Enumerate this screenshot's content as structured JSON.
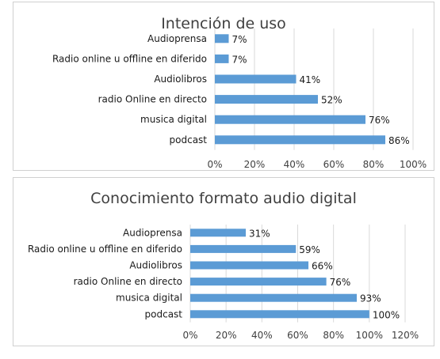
{
  "chart_data": [
    {
      "type": "bar",
      "orientation": "horizontal",
      "title": "Intención de uso",
      "categories": [
        "Audioprensa",
        "Radio online u offline en diferido",
        "Audiolibros",
        "radio Online en directo",
        "musica digital",
        "podcast"
      ],
      "values": [
        7,
        7,
        41,
        52,
        76,
        86
      ],
      "value_labels": [
        "7%",
        "7%",
        "41%",
        "52%",
        "76%",
        "86%"
      ],
      "xticks": [
        "0%",
        "20%",
        "40%",
        "60%",
        "80%",
        "100%"
      ],
      "xlim": [
        0,
        100
      ],
      "grid": true,
      "bar_color": "#5b9bd5"
    },
    {
      "type": "bar",
      "orientation": "horizontal",
      "title": "Conocimiento formato audio digital",
      "categories": [
        "Audioprensa",
        "Radio online u offline en diferido",
        "Audiolibros",
        "radio Online en directo",
        "musica digital",
        "podcast"
      ],
      "values": [
        31,
        59,
        66,
        76,
        93,
        100
      ],
      "value_labels": [
        "31%",
        "59%",
        "66%",
        "76%",
        "93%",
        "100%"
      ],
      "xticks": [
        "0%",
        "20%",
        "40%",
        "60%",
        "80%",
        "100%",
        "120%"
      ],
      "xlim": [
        0,
        120
      ],
      "grid": true,
      "bar_color": "#5b9bd5"
    }
  ]
}
